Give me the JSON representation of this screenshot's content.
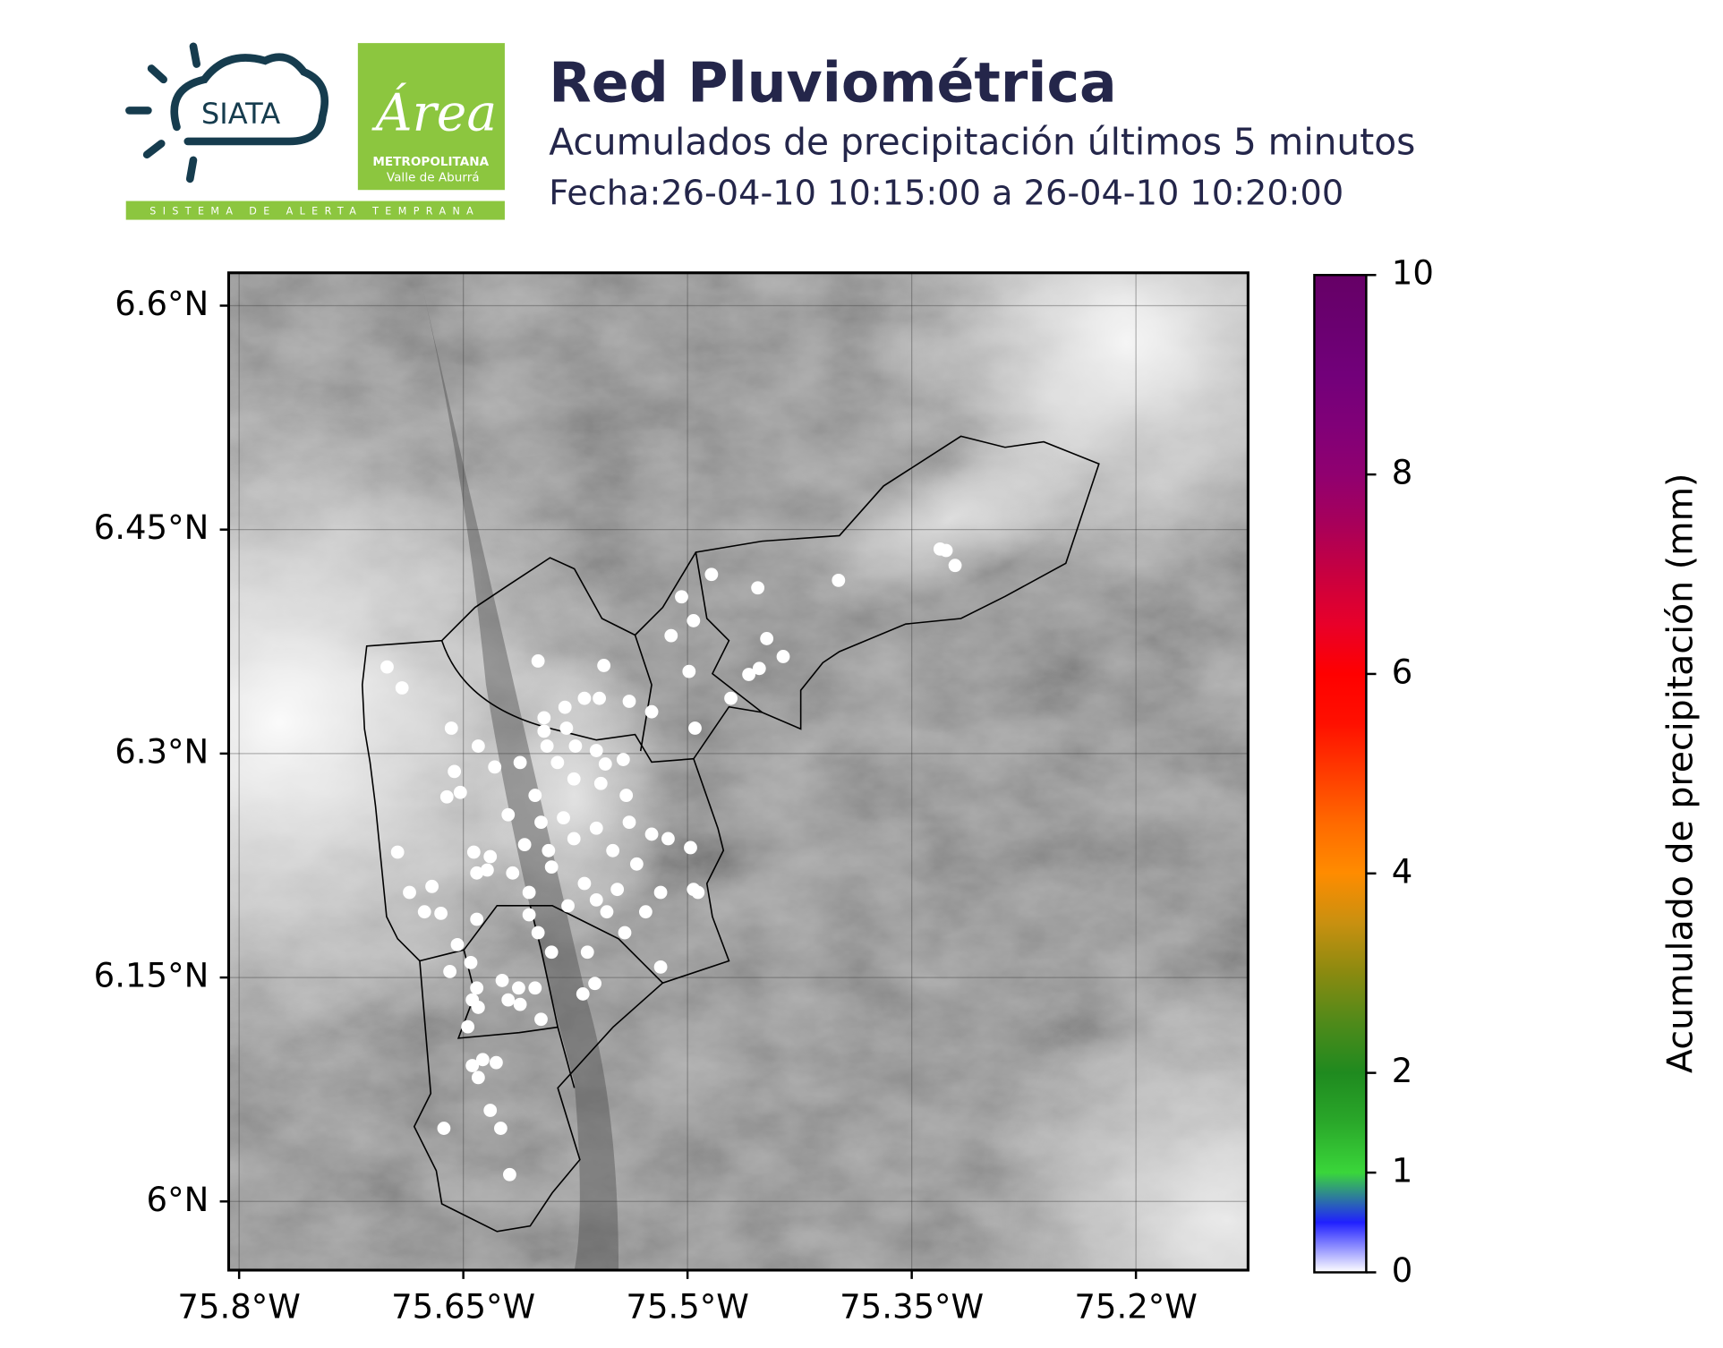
{
  "header": {
    "title": "Red Pluviométrica",
    "subtitle": "Acumulados de precipitación últimos 5 minutos",
    "date": "Fecha:26-04-10 10:15:00 a 26-04-10 10:20:00",
    "logos": {
      "siata": "SIATA",
      "area": "Área",
      "metropolitana": "METROPOLITANA",
      "valle": "Valle de Aburrá",
      "strip": "SISTEMA DE ALERTA TEMPRANA"
    }
  },
  "chart_data": {
    "type": "scatter",
    "point_color": "#ffffff",
    "grid": true,
    "xlim": [
      -75.807,
      -75.125
    ],
    "ylim": [
      5.954,
      6.622
    ],
    "xticks": [
      {
        "value": -75.8,
        "label": "75.8°W"
      },
      {
        "value": -75.65,
        "label": "75.65°W"
      },
      {
        "value": -75.5,
        "label": "75.5°W"
      },
      {
        "value": -75.35,
        "label": "75.35°W"
      },
      {
        "value": -75.2,
        "label": "75.2°W"
      }
    ],
    "yticks": [
      {
        "value": 6.6,
        "label": "6.6°N"
      },
      {
        "value": 6.45,
        "label": "6.45°N"
      },
      {
        "value": 6.3,
        "label": "6.3°N"
      },
      {
        "value": 6.15,
        "label": "6.15°N"
      },
      {
        "value": 6.0,
        "label": "6°N"
      }
    ],
    "x": [
      -75.701,
      -75.691,
      -75.6,
      -75.556,
      -75.504,
      -75.484,
      -75.453,
      -75.399,
      -75.331,
      -75.327,
      -75.321,
      -75.511,
      -75.496,
      -75.447,
      -75.436,
      -75.459,
      -75.452,
      -75.499,
      -75.524,
      -75.471,
      -75.495,
      -75.539,
      -75.559,
      -75.569,
      -75.582,
      -75.596,
      -75.596,
      -75.658,
      -75.64,
      -75.612,
      -75.629,
      -75.656,
      -75.661,
      -75.652,
      -75.594,
      -75.581,
      -75.575,
      -75.561,
      -75.555,
      -75.543,
      -75.587,
      -75.576,
      -75.558,
      -75.541,
      -75.602,
      -75.62,
      -75.598,
      -75.583,
      -75.561,
      -75.539,
      -75.524,
      -75.498,
      -75.513,
      -75.55,
      -75.576,
      -75.593,
      -75.609,
      -75.632,
      -75.643,
      -75.694,
      -75.634,
      -75.641,
      -75.617,
      -75.591,
      -75.569,
      -75.547,
      -75.534,
      -75.518,
      -75.496,
      -75.493,
      -75.686,
      -75.671,
      -75.676,
      -75.665,
      -75.641,
      -75.606,
      -75.58,
      -75.561,
      -75.554,
      -75.528,
      -75.606,
      -75.6,
      -75.591,
      -75.567,
      -75.542,
      -75.518,
      -75.659,
      -75.654,
      -75.645,
      -75.641,
      -75.624,
      -75.613,
      -75.602,
      -75.62,
      -75.612,
      -75.598,
      -75.644,
      -75.64,
      -75.647,
      -75.637,
      -75.628,
      -75.644,
      -75.64,
      -75.632,
      -75.625,
      -75.663,
      -75.619,
      -75.562,
      -75.57
    ],
    "y": [
      6.358,
      6.344,
      6.362,
      6.359,
      6.405,
      6.42,
      6.411,
      6.416,
      6.437,
      6.436,
      6.426,
      6.379,
      6.389,
      6.377,
      6.365,
      6.353,
      6.357,
      6.355,
      6.328,
      6.337,
      6.317,
      6.335,
      6.337,
      6.337,
      6.331,
      6.324,
      6.315,
      6.317,
      6.305,
      6.294,
      6.291,
      6.288,
      6.271,
      6.274,
      6.305,
      6.317,
      6.305,
      6.302,
      6.293,
      6.296,
      6.294,
      6.283,
      6.28,
      6.272,
      6.272,
      6.259,
      6.254,
      6.257,
      6.25,
      6.254,
      6.246,
      6.237,
      6.243,
      6.235,
      6.243,
      6.235,
      6.239,
      6.231,
      6.234,
      6.234,
      6.222,
      6.22,
      6.22,
      6.224,
      6.213,
      6.209,
      6.226,
      6.207,
      6.209,
      6.207,
      6.207,
      6.211,
      6.194,
      6.193,
      6.189,
      6.207,
      6.198,
      6.202,
      6.194,
      6.194,
      6.192,
      6.18,
      6.167,
      6.167,
      6.18,
      6.157,
      6.154,
      6.172,
      6.16,
      6.143,
      6.148,
      6.143,
      6.143,
      6.135,
      6.132,
      6.122,
      6.135,
      6.13,
      6.117,
      6.095,
      6.093,
      6.091,
      6.083,
      6.061,
      6.049,
      6.049,
      6.018,
      6.146,
      6.139
    ],
    "colorbar": {
      "label": "Acumulado de precipitación (mm)",
      "lim": [
        0,
        10
      ],
      "ticks": [
        0,
        1,
        2,
        4,
        6,
        8,
        10
      ],
      "colors": [
        "#ffffff",
        "#2020ff",
        "#3ad63a",
        "#2aa82a",
        "#1f8a1f",
        "#4f8a1a",
        "#8a8a10",
        "#c89010",
        "#ff8c00",
        "#ff6a00",
        "#ff3c00",
        "#ff1000",
        "#ff0000",
        "#e8002a",
        "#c80040",
        "#a8005a",
        "#900070",
        "#800078",
        "#72007a",
        "#6a0070",
        "#660066"
      ]
    }
  }
}
